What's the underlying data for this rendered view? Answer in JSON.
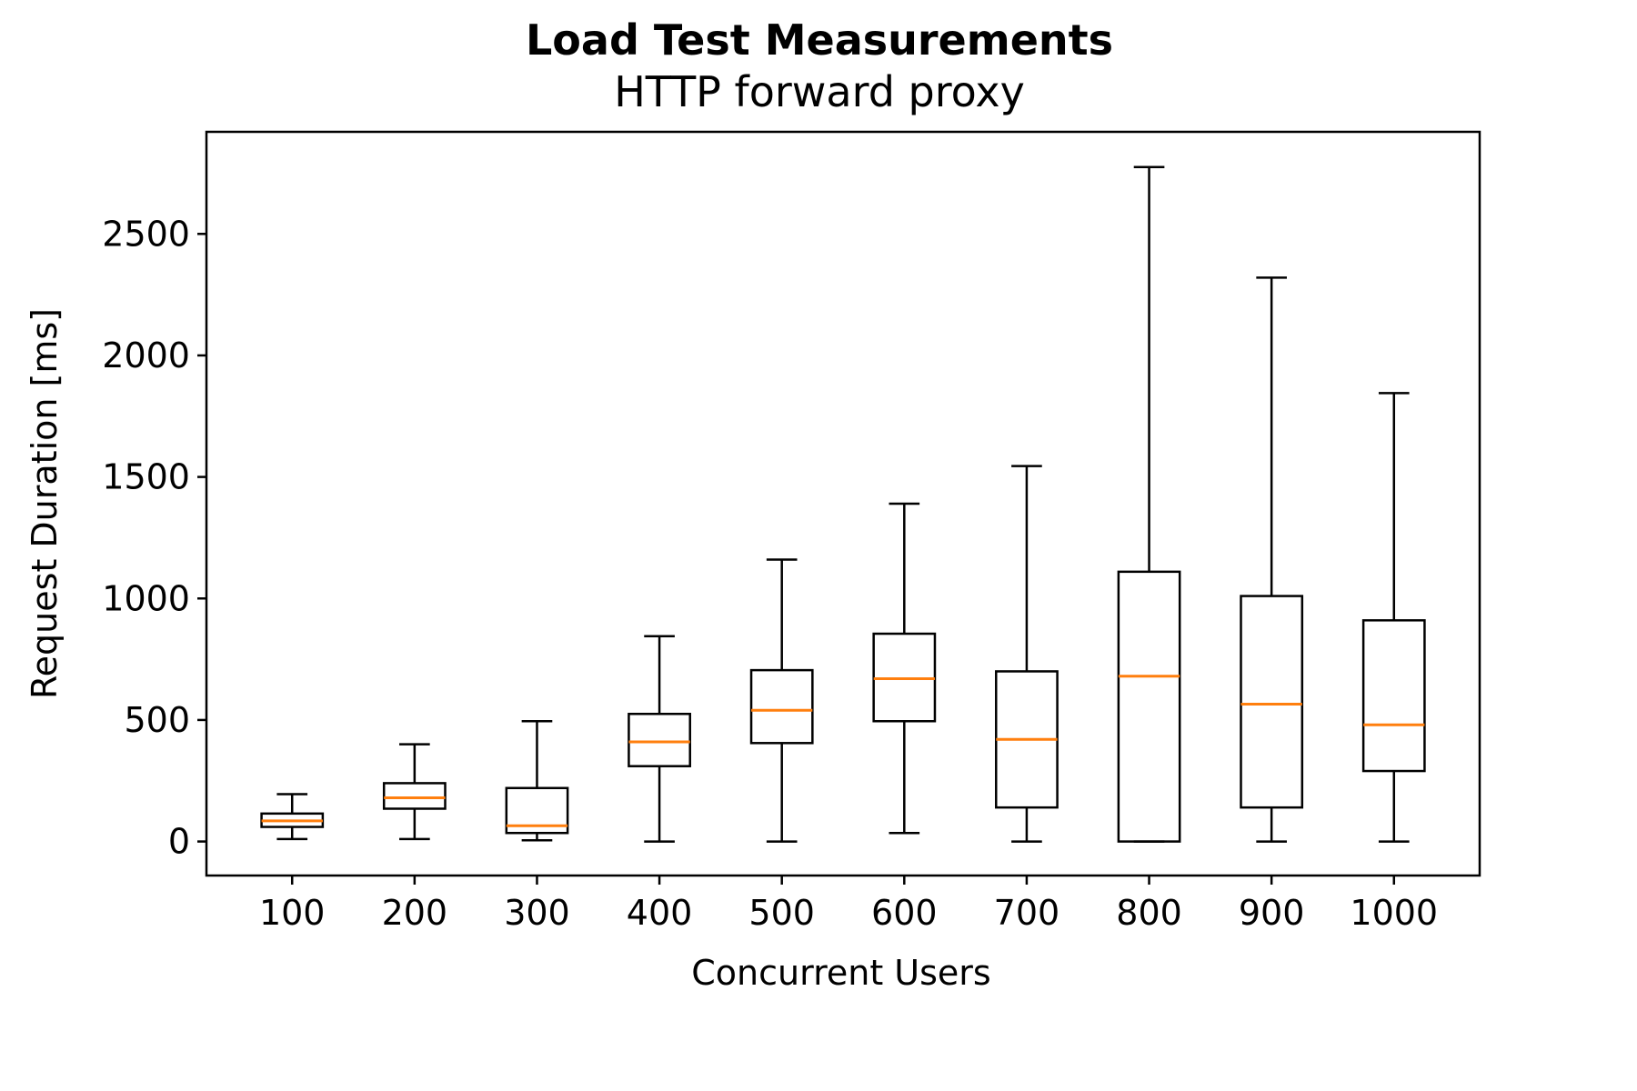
{
  "chart_data": {
    "type": "box",
    "title": "Load Test Measurements",
    "subtitle": "HTTP forward proxy",
    "xlabel": "Concurrent Users",
    "ylabel": "Request Duration [ms]",
    "ylim": [
      -140,
      2920
    ],
    "yticks": [
      "0",
      "500",
      "1000",
      "1500",
      "2000",
      "2500"
    ],
    "ytick_values": [
      0,
      500,
      1000,
      1500,
      2000,
      2500
    ],
    "categories": [
      "100",
      "200",
      "300",
      "400",
      "500",
      "600",
      "700",
      "800",
      "900",
      "1000"
    ],
    "boxes": [
      {
        "category": "100",
        "whisker_low": 10,
        "q1": 60,
        "median": 85,
        "q3": 115,
        "whisker_high": 195
      },
      {
        "category": "200",
        "whisker_low": 10,
        "q1": 135,
        "median": 180,
        "q3": 240,
        "whisker_high": 400
      },
      {
        "category": "300",
        "whisker_low": 5,
        "q1": 35,
        "median": 65,
        "q3": 220,
        "whisker_high": 495
      },
      {
        "category": "400",
        "whisker_low": 0,
        "q1": 310,
        "median": 410,
        "q3": 525,
        "whisker_high": 845
      },
      {
        "category": "500",
        "whisker_low": 0,
        "q1": 405,
        "median": 540,
        "q3": 705,
        "whisker_high": 1160
      },
      {
        "category": "600",
        "whisker_low": 35,
        "q1": 495,
        "median": 670,
        "q3": 855,
        "whisker_high": 1390
      },
      {
        "category": "700",
        "whisker_low": 0,
        "q1": 140,
        "median": 420,
        "q3": 700,
        "whisker_high": 1545
      },
      {
        "category": "800",
        "whisker_low": 0,
        "q1": 0,
        "median": 680,
        "q3": 1110,
        "whisker_high": 2775
      },
      {
        "category": "900",
        "whisker_low": 0,
        "q1": 140,
        "median": 565,
        "q3": 1010,
        "whisker_high": 2320
      },
      {
        "category": "1000",
        "whisker_low": 0,
        "q1": 290,
        "median": 480,
        "q3": 910,
        "whisker_high": 1845
      }
    ],
    "colors": {
      "box": "#000000",
      "median": "#ff7f0e"
    },
    "grid": false,
    "legend": "none"
  }
}
